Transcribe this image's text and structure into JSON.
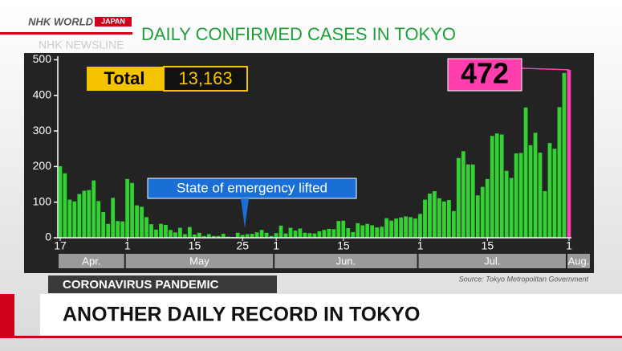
{
  "header": {
    "logo": "NHK WORLD",
    "logo_sub": "JAPAN",
    "program": "NHK NEWSLINE"
  },
  "chart_data": {
    "type": "bar",
    "title": "DAILY CONFIRMED CASES IN TOKYO",
    "categories": [
      "17",
      null,
      null,
      null,
      null,
      null,
      null,
      null,
      null,
      null,
      null,
      null,
      null,
      null,
      "1",
      null,
      null,
      null,
      null,
      null,
      null,
      null,
      null,
      null,
      null,
      null,
      null,
      null,
      "15",
      null,
      null,
      null,
      null,
      null,
      null,
      null,
      null,
      null,
      "25",
      null,
      null,
      null,
      null,
      null,
      null,
      "1",
      null,
      null,
      null,
      null,
      null,
      null,
      null,
      null,
      null,
      null,
      null,
      null,
      null,
      "15",
      null,
      null,
      null,
      null,
      null,
      null,
      null,
      null,
      null,
      null,
      null,
      null,
      null,
      null,
      null,
      "1",
      null,
      null,
      null,
      null,
      null,
      null,
      null,
      null,
      null,
      null,
      null,
      null,
      null,
      "15",
      null,
      null,
      null,
      null,
      null,
      null,
      null,
      null,
      null,
      null,
      null,
      null,
      null,
      null,
      null,
      null,
      "1"
    ],
    "x_groups": [
      "Apr.",
      "May",
      "Jun.",
      "Jul.",
      "Aug."
    ],
    "values": [
      201,
      181,
      107,
      102,
      123,
      132,
      134,
      161,
      103,
      72,
      39,
      112,
      47,
      46,
      165,
      154,
      91,
      87,
      58,
      38,
      23,
      39,
      36,
      22,
      15,
      28,
      10,
      30,
      9,
      14,
      5,
      10,
      5,
      5,
      11,
      3,
      2,
      14,
      8,
      10,
      11,
      15,
      22,
      14,
      5,
      13,
      34,
      12,
      28,
      20,
      26,
      14,
      13,
      12,
      18,
      22,
      25,
      24,
      47,
      48,
      27,
      16,
      41,
      35,
      39,
      35,
      29,
      31,
      55,
      48,
      54,
      57,
      60,
      58,
      54,
      67,
      107,
      124,
      131,
      111,
      102,
      106,
      75,
      224,
      243,
      206,
      206,
      119,
      143,
      165,
      286,
      293,
      290,
      188,
      168,
      237,
      238,
      366,
      260,
      295,
      239,
      131,
      266,
      250,
      367,
      463,
      472
    ],
    "color": "#33d233",
    "last_color": "#ff3fae",
    "ylim": [
      0,
      510
    ],
    "yticks": [
      0,
      100,
      200,
      300,
      400,
      500
    ],
    "total_label": "Total",
    "total": {
      "value": 13163,
      "label": "13,163"
    },
    "annotation": "State of emergency lifted",
    "source": "Source: Tokyo Metropolitan Government"
  },
  "banner": {
    "tag": "CORONAVIRUS PANDEMIC",
    "headline": "ANOTHER DAILY RECORD IN TOKYO"
  }
}
